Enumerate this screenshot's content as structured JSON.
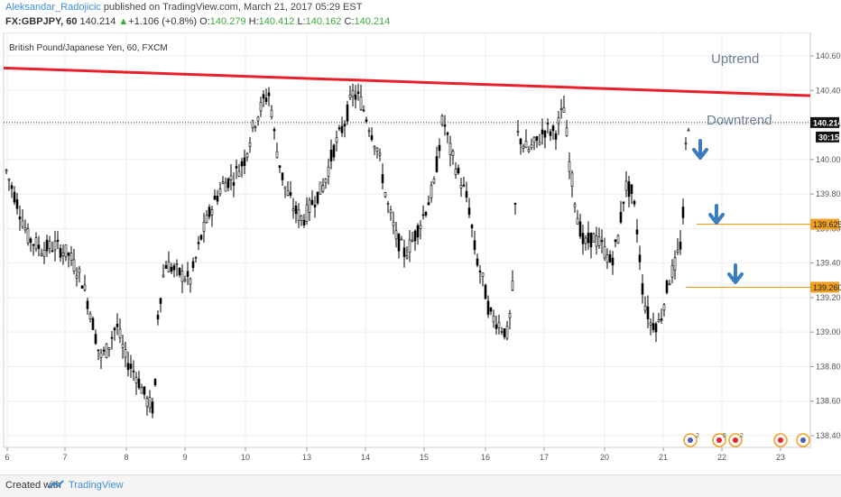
{
  "header": {
    "author": "Aleksandar_Radojicic",
    "published": "published on TradingView.com, March 21, 2017 05:29 EST",
    "symbol": "FX:GBPJPY, 60",
    "price": "140.214",
    "change": "+1.106 (+0.8%)",
    "o_label": "O:",
    "o": "140.279",
    "h_label": "H:",
    "h": "140.412",
    "l_label": "L:",
    "l": "140.162",
    "c_label": "C:",
    "c": "140.214"
  },
  "chart_data": {
    "type": "candlestick",
    "title": "British Pound/Japanese Yen, 60, FXCM",
    "ylim": [
      138.3,
      140.6
    ],
    "y_ticks": [
      "140.600",
      "140.400",
      "140.200",
      "140.000",
      "139.800",
      "139.600",
      "139.400",
      "139.200",
      "139.000",
      "138.800",
      "138.600",
      "138.400"
    ],
    "x_ticks": [
      "6",
      "7",
      "8",
      "9",
      "10",
      "13",
      "14",
      "15",
      "16",
      "17",
      "20",
      "21",
      "22",
      "23"
    ],
    "last_price_label": "140.214",
    "countdown_label": "30:15",
    "levels": [
      {
        "value": 139.625,
        "label": "139.625",
        "color": "#f0a020"
      },
      {
        "value": 139.26,
        "label": "139.260",
        "color": "#f0a020"
      }
    ],
    "trendline": {
      "from": 140.53,
      "to": 140.37,
      "color": "#e8202a"
    },
    "annotations": [
      {
        "text": "Uptrend",
        "color": "#6a7f95"
      },
      {
        "text": "Downtrend",
        "color": "#6a7f95"
      }
    ],
    "arrow_color": "#3a7ebf",
    "event_markers": [
      "2",
      "5",
      "2"
    ]
  },
  "footer": {
    "created": "Created with",
    "brand": "TradingView"
  }
}
